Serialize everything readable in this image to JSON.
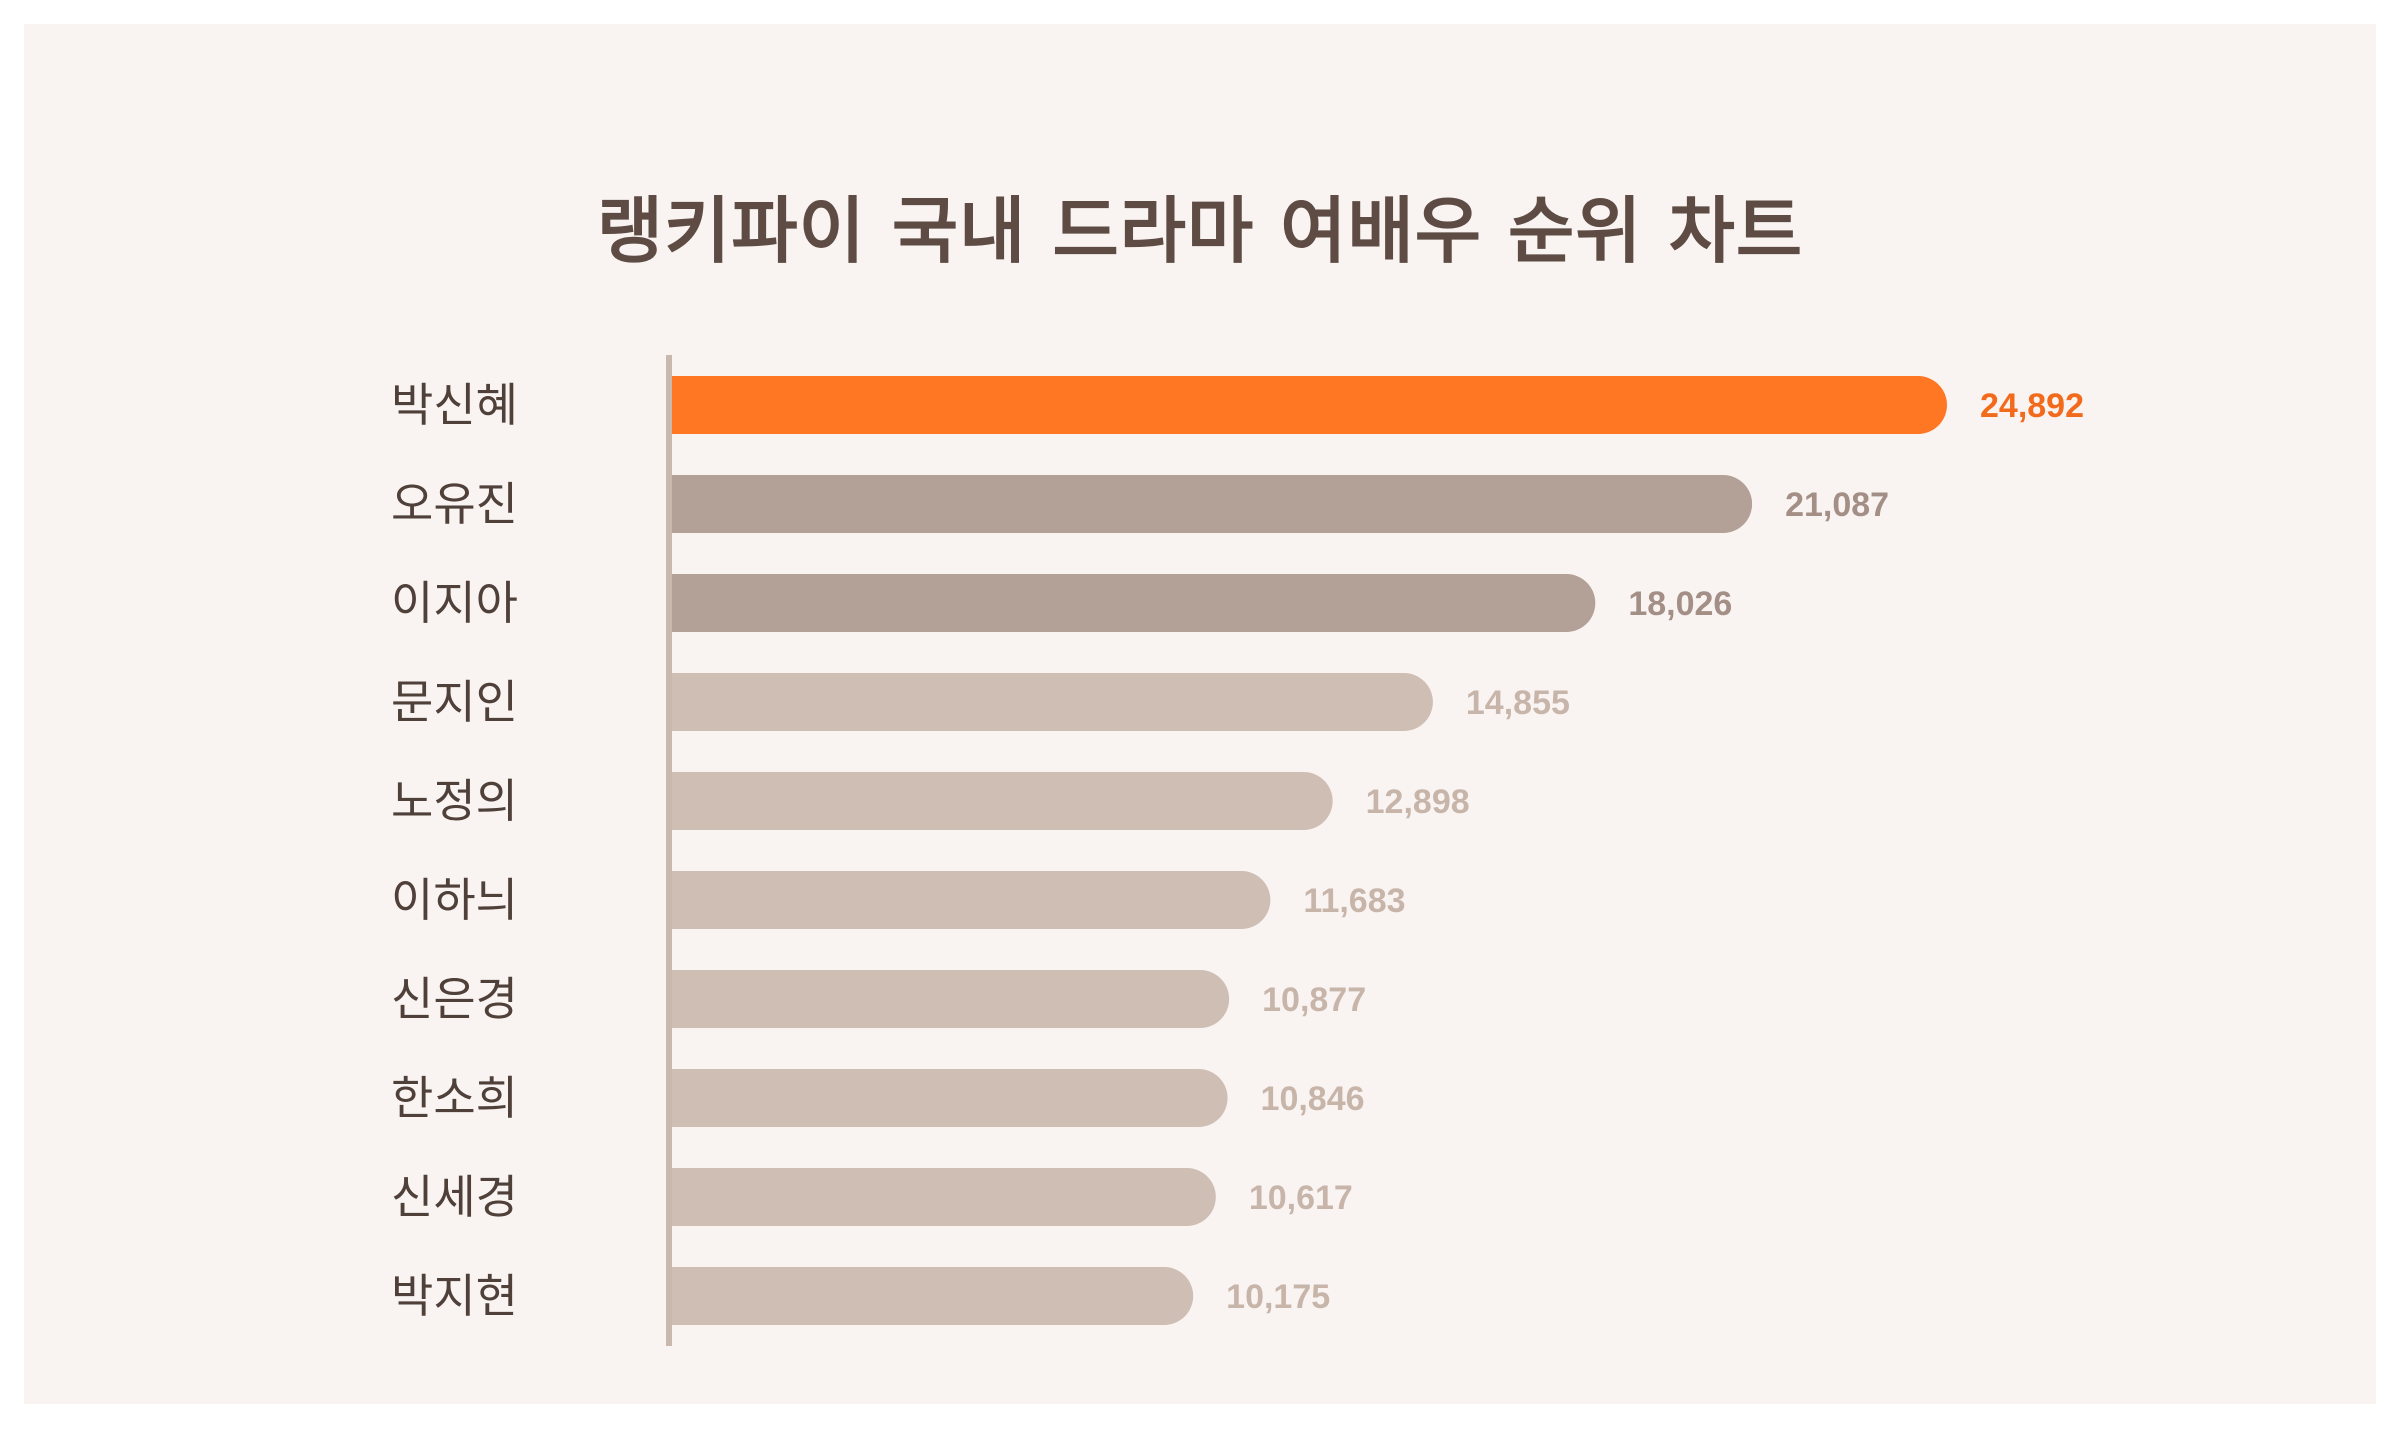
{
  "chart_data": {
    "type": "bar",
    "orientation": "horizontal",
    "title": "랭키파이 국내 드라마 여배우 순위 차트",
    "categories": [
      "박신혜",
      "오유진",
      "이지아",
      "문지인",
      "노정의",
      "이하늬",
      "신은경",
      "한소희",
      "신세경",
      "박지현"
    ],
    "values": [
      24892,
      21087,
      18026,
      14855,
      12898,
      11683,
      10877,
      10846,
      10617,
      10175
    ],
    "value_labels": [
      "24,892",
      "21,087",
      "18,026",
      "14,855",
      "12,898",
      "11,683",
      "10,877",
      "10,846",
      "10,617",
      "10,175"
    ],
    "grid": false,
    "legend": "none",
    "colors": {
      "rank1_bar": "#ff7722",
      "rank1_label": "#f26a1b",
      "top3_bar": "#b3a097",
      "top3_label": "#a38f86",
      "other_bar": "#cfbeb4",
      "other_label": "#c8b5aa",
      "axis": "#c9b8ae",
      "title": "#5e4c44",
      "background": "#f9f4f2"
    }
  }
}
